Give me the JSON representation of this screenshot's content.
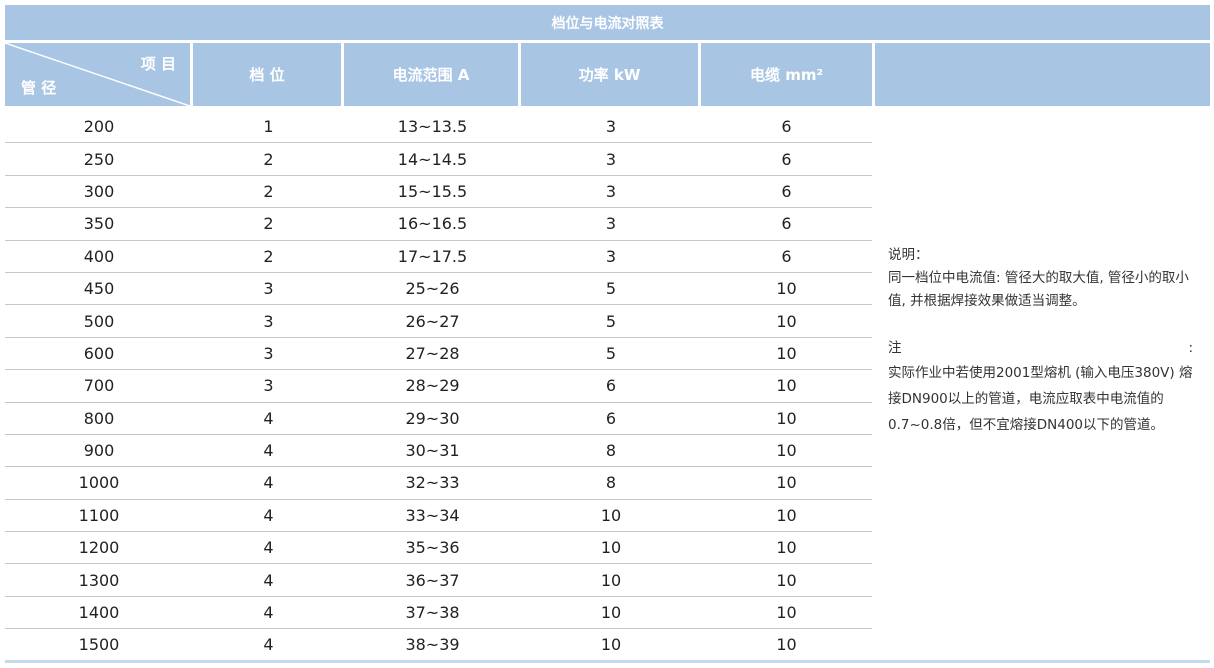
{
  "title": "档位与电流对照表",
  "header": {
    "corner_top": "项 目",
    "corner_bottom": "管 径",
    "columns": [
      "档 位",
      "电流范围 A",
      "功率 kW",
      "电缆 mm²"
    ]
  },
  "header_color": "#a9c5e4",
  "rows": [
    [
      "200",
      "1",
      "13~13.5",
      "3",
      "6"
    ],
    [
      "250",
      "2",
      "14~14.5",
      "3",
      "6"
    ],
    [
      "300",
      "2",
      "15~15.5",
      "3",
      "6"
    ],
    [
      "350",
      "2",
      "16~16.5",
      "3",
      "6"
    ],
    [
      "400",
      "2",
      "17~17.5",
      "3",
      "6"
    ],
    [
      "450",
      "3",
      "25~26",
      "5",
      "10"
    ],
    [
      "500",
      "3",
      "26~27",
      "5",
      "10"
    ],
    [
      "600",
      "3",
      "27~28",
      "5",
      "10"
    ],
    [
      "700",
      "3",
      "28~29",
      "6",
      "10"
    ],
    [
      "800",
      "4",
      "29~30",
      "6",
      "10"
    ],
    [
      "900",
      "4",
      "30~31",
      "8",
      "10"
    ],
    [
      "1000",
      "4",
      "32~33",
      "8",
      "10"
    ],
    [
      "1100",
      "4",
      "33~34",
      "10",
      "10"
    ],
    [
      "1200",
      "4",
      "35~36",
      "10",
      "10"
    ],
    [
      "1300",
      "4",
      "36~37",
      "10",
      "10"
    ],
    [
      "1400",
      "4",
      "37~38",
      "10",
      "10"
    ],
    [
      "1500",
      "4",
      "38~39",
      "10",
      "10"
    ]
  ],
  "notes": {
    "explain_title": "说明：",
    "explain_text": "同一档位中电流值: 管径大的取大值, 管径小的取小值, 并根据焊接效果做适当调整。",
    "note_title": "注",
    "note_colon": ":",
    "note_text": "实际作业中若使用2001型熔机 (输入电压380V) 熔接DN900以上的管道，电流应取表中电流值的0.7~0.8倍，但不宜熔接DN400以下的管道。"
  }
}
